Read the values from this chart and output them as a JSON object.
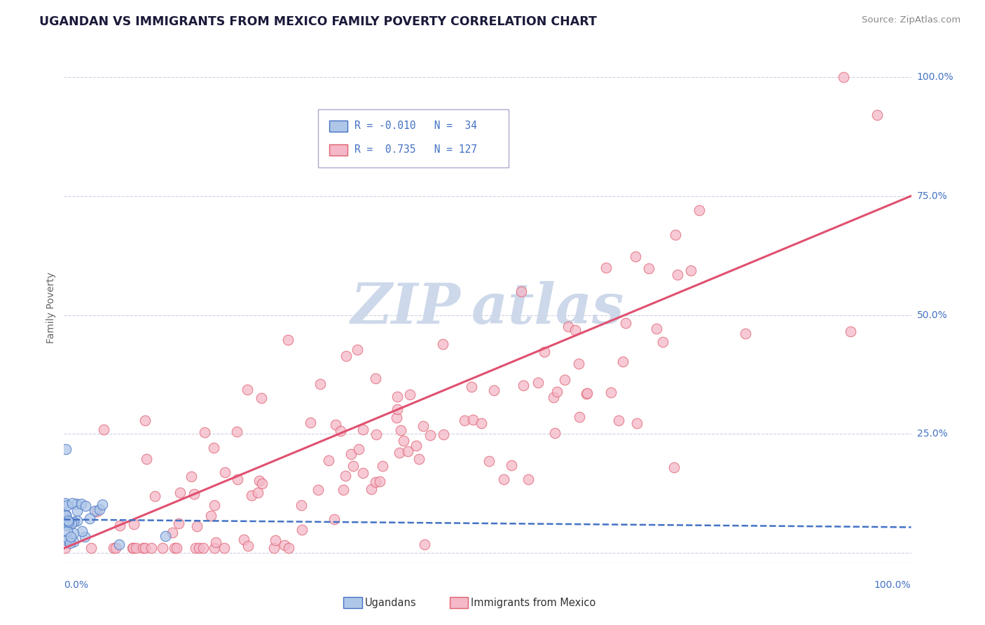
{
  "title": "UGANDAN VS IMMIGRANTS FROM MEXICO FAMILY POVERTY CORRELATION CHART",
  "source_text": "Source: ZipAtlas.com",
  "ylabel": "Family Poverty",
  "ugandan_color": "#aec6e8",
  "ugandan_edge_color": "#4472c4",
  "mexico_color": "#f4b8c8",
  "mexico_edge_color": "#e06070",
  "ugandan_line_color": "#4472c4",
  "mexico_line_color": "#e05070",
  "grid_color": "#c8cce0",
  "watermark_color": "#c8d4e8",
  "r_ugandan": -0.01,
  "r_mexico": 0.735,
  "n_ugandan": 34,
  "n_mexico": 127,
  "axis_label_color": "#4472c4",
  "ylabel_color": "#888888",
  "title_color": "#1a1a3a",
  "source_color": "#888888"
}
